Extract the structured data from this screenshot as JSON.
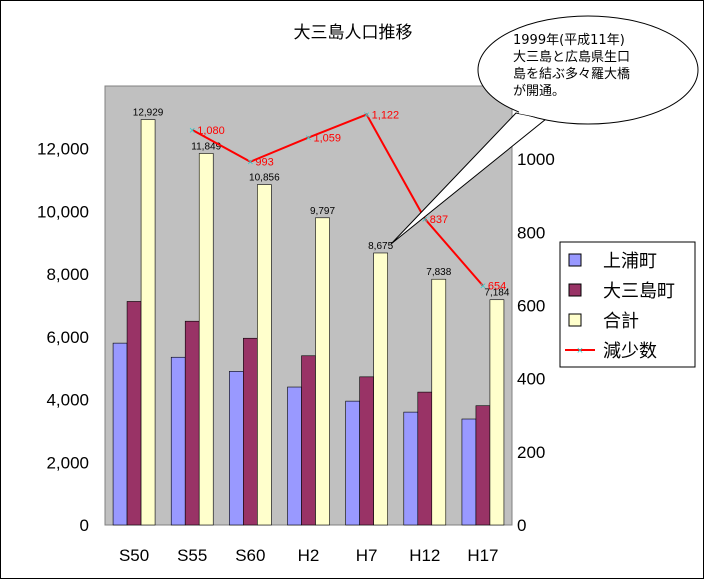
{
  "chart_data": {
    "type": "bar",
    "title": "大三島人口推移",
    "categories": [
      "S50",
      "S55",
      "S60",
      "H2",
      "H7",
      "H12",
      "H17"
    ],
    "series": [
      {
        "name": "上浦町",
        "axis": "left",
        "color": "#9999ff",
        "values": [
          5800,
          5350,
          4900,
          4400,
          3950,
          3600,
          3380
        ]
      },
      {
        "name": "大三島町",
        "axis": "left",
        "color": "#993366",
        "values": [
          7129,
          6499,
          5956,
          5397,
          4725,
          4238,
          3804
        ]
      },
      {
        "name": "合計",
        "axis": "left",
        "color": "#ffffcc",
        "values": [
          12929,
          11849,
          10856,
          9797,
          8675,
          7838,
          7184
        ],
        "labels": [
          "12,929",
          "11,849",
          "10,856",
          "9,797",
          "8,675",
          "7,838",
          "7,184"
        ]
      },
      {
        "name": "減少数",
        "type": "line",
        "axis": "right",
        "color": "#ff0000",
        "values": [
          null,
          1080,
          993,
          1059,
          1122,
          837,
          654
        ],
        "labels": [
          "",
          "1,080",
          "993",
          "1,059",
          "1,122",
          "837",
          "654"
        ]
      }
    ],
    "left_axis": {
      "ylim": [
        0,
        14000
      ],
      "ticks": [
        "0",
        "2,000",
        "4,000",
        "6,000",
        "8,000",
        "10,000",
        "12,000"
      ]
    },
    "right_axis": {
      "ylim": [
        0,
        1200
      ],
      "ticks": [
        "0",
        "200",
        "400",
        "600",
        "800",
        "1000"
      ]
    },
    "legend_position": "right",
    "plot_background": "#c0c0c0"
  },
  "callout": {
    "lines": [
      "1999年(平成11年)",
      "大三島と広島県生口",
      "島を結ぶ多々羅大橋",
      "が開通。"
    ]
  }
}
